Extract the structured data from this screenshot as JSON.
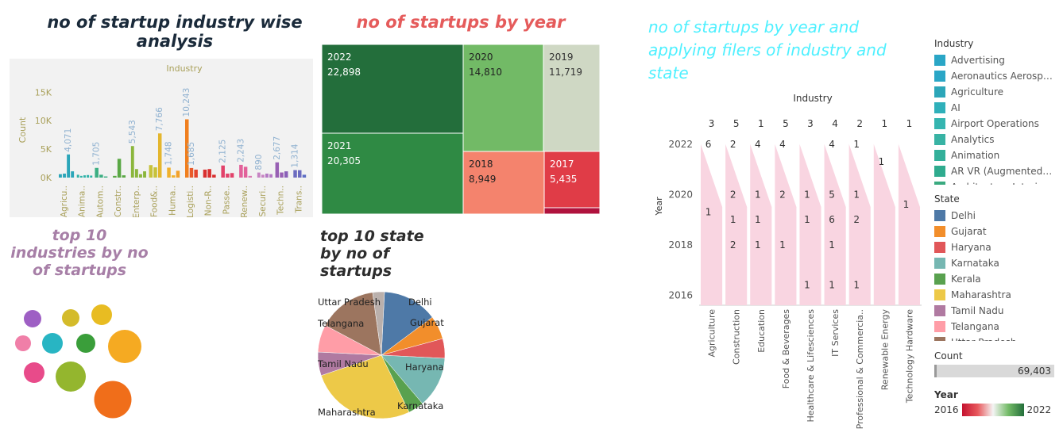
{
  "titles": {
    "industry": "no of startup industry wise analysis",
    "year": "no of startups by year",
    "right": "no of startups by year and applying filers of industry and state",
    "top10_industries": "top 10 industries by no of startups",
    "top10_states": "top 10 state by no of startups"
  },
  "colors": {
    "title_dark": "#1a2a3a",
    "title_red": "#e55b5b",
    "title_cyan": "#4ff0ff",
    "title_purple": "#a77fa7",
    "area_pink": "#f9d5e1"
  },
  "chart_data": [
    {
      "id": "industry-bars",
      "type": "bar",
      "title": "no of startup industry wise analysis",
      "header": "Industry",
      "ylabel": "Count",
      "yticks": [
        "0K",
        "5K",
        "10K",
        "15K"
      ],
      "ylim": [
        0,
        17000
      ],
      "groups": [
        {
          "label": "Agricu..",
          "values": [
            600,
            700,
            4071,
            1100
          ],
          "colors": [
            "#2ca6b9",
            "#2ca6b9",
            "#2ca6b9",
            "#2ca6b9"
          ],
          "data_label": "4,071"
        },
        {
          "label": "Anima..",
          "values": [
            500,
            300,
            400,
            450,
            350
          ],
          "colors": [
            "#2fb2a8",
            "#2fb2a8",
            "#2fb2a8",
            "#2fb2a8",
            "#2fb2a8"
          ]
        },
        {
          "label": "Autom..",
          "values": [
            1705,
            500,
            200
          ],
          "colors": [
            "#3cae82",
            "#3cae82",
            "#3cae82"
          ],
          "data_label": "1,705"
        },
        {
          "label": "Constr..",
          "values": [
            300,
            3300,
            400
          ],
          "colors": [
            "#5aa845",
            "#5aa845",
            "#5aa845"
          ]
        },
        {
          "label": "Enterp..",
          "values": [
            5543,
            1500,
            600,
            1100
          ],
          "colors": [
            "#8bb63c",
            "#8bb63c",
            "#8bb63c",
            "#8bb63c"
          ],
          "data_label": "5,543"
        },
        {
          "label": "Food&..",
          "values": [
            2200,
            1800,
            7766
          ],
          "colors": [
            "#c7c23a",
            "#c7c23a",
            "#e4b62e"
          ],
          "data_label": "7,766"
        },
        {
          "label": "Huma..",
          "values": [
            1748,
            400,
            1200
          ],
          "colors": [
            "#f0b12c",
            "#f0b12c",
            "#f2a12a"
          ],
          "data_label": "1,748"
        },
        {
          "label": "Logisti..",
          "values": [
            10243,
            1685,
            1400
          ],
          "colors": [
            "#f07f1e",
            "#e95a2a",
            "#e4452e"
          ],
          "data_label": "10,243",
          "data_label2": "1,685"
        },
        {
          "label": "Non-R..",
          "values": [
            1400,
            1500,
            500
          ],
          "colors": [
            "#d92f2f",
            "#d92f2f",
            "#d92f2f"
          ]
        },
        {
          "label": "Passe..",
          "values": [
            2125,
            700,
            800
          ],
          "colors": [
            "#e2426a",
            "#e2426a",
            "#e2426a"
          ],
          "data_label": "2,125"
        },
        {
          "label": "Renew..",
          "values": [
            2243,
            1900,
            300
          ],
          "colors": [
            "#e2609a",
            "#e2609a",
            "#d97bb4"
          ],
          "data_label": "2,243"
        },
        {
          "label": "Securi..",
          "values": [
            890,
            500,
            700,
            600
          ],
          "colors": [
            "#c784c3",
            "#c784c3",
            "#b479c4",
            "#b479c4"
          ],
          "data_label": "890"
        },
        {
          "label": "Techn..",
          "values": [
            2677,
            900,
            1100
          ],
          "colors": [
            "#9860b4",
            "#9860b4",
            "#8a60b8"
          ],
          "data_label": "2,677"
        },
        {
          "label": "Trans..",
          "values": [
            1314,
            1300,
            500
          ],
          "colors": [
            "#6c6cc0",
            "#6c6cc0",
            "#5d6ec4"
          ],
          "data_label": "1,314"
        }
      ]
    },
    {
      "id": "year-treemap",
      "type": "treemap",
      "title": "no of startups by year",
      "cells": [
        {
          "year": "2022",
          "value": "22,898",
          "color": "#236e3b"
        },
        {
          "year": "2021",
          "value": "20,305",
          "color": "#2f8a44"
        },
        {
          "year": "2020",
          "value": "14,810",
          "color": "#72ba66"
        },
        {
          "year": "2019",
          "value": "11,719",
          "color": "#cfd8c4"
        },
        {
          "year": "2018",
          "value": "8,949",
          "color": "#f4836d"
        },
        {
          "year": "2017",
          "value": "5,435",
          "color": "#e03c47"
        },
        {
          "year": "",
          "value": "",
          "color": "#b0123d"
        }
      ]
    },
    {
      "id": "year-industry-area",
      "type": "area",
      "title": "no of startups by year and applying filers of industry and state",
      "header": "Industry",
      "ylabel": "Year",
      "yticks": [
        "2016",
        "2018",
        "2020",
        "2022"
      ],
      "ylim": [
        2015.6,
        2023
      ],
      "categories": [
        "Agriculture",
        "Construction",
        "Education",
        "Food & Beverages",
        "Healthcare & Lifesciences",
        "IT Services",
        "Professional & Commercia..",
        "Renewable Energy",
        "Technology Hardware"
      ],
      "top_counts": [
        "3",
        "5",
        "1",
        "5",
        "3",
        "4",
        "2",
        "1",
        "1"
      ],
      "points": [
        {
          "c": 0,
          "year": 2022,
          "label": "6"
        },
        {
          "c": 0,
          "year": 2019.3,
          "label": "1"
        },
        {
          "c": 1,
          "year": 2022,
          "label": "2"
        },
        {
          "c": 1,
          "year": 2020,
          "label": "2"
        },
        {
          "c": 1,
          "year": 2019,
          "label": "1"
        },
        {
          "c": 1,
          "year": 2018,
          "label": "2"
        },
        {
          "c": 2,
          "year": 2022,
          "label": "4"
        },
        {
          "c": 2,
          "year": 2020,
          "label": "1"
        },
        {
          "c": 2,
          "year": 2019,
          "label": "1"
        },
        {
          "c": 2,
          "year": 2018,
          "label": "1"
        },
        {
          "c": 3,
          "year": 2022,
          "label": "4"
        },
        {
          "c": 3,
          "year": 2020,
          "label": "2"
        },
        {
          "c": 3,
          "year": 2018,
          "label": "1"
        },
        {
          "c": 4,
          "year": 2020,
          "label": "1"
        },
        {
          "c": 4,
          "year": 2019,
          "label": "1"
        },
        {
          "c": 4,
          "year": 2016.4,
          "label": "1"
        },
        {
          "c": 5,
          "year": 2022,
          "label": "4"
        },
        {
          "c": 5,
          "year": 2020,
          "label": "5"
        },
        {
          "c": 5,
          "year": 2019,
          "label": "6"
        },
        {
          "c": 5,
          "year": 2018,
          "label": "1"
        },
        {
          "c": 5,
          "year": 2016.4,
          "label": "1"
        },
        {
          "c": 6,
          "year": 2022,
          "label": "1"
        },
        {
          "c": 6,
          "year": 2020,
          "label": "1"
        },
        {
          "c": 6,
          "year": 2019,
          "label": "2"
        },
        {
          "c": 6,
          "year": 2016.4,
          "label": "1"
        },
        {
          "c": 7,
          "year": 2021.3,
          "label": "1"
        },
        {
          "c": 8,
          "year": 2019.6,
          "label": "1"
        }
      ]
    },
    {
      "id": "top10-industries-bubbles",
      "type": "bubble",
      "title": "top 10 industries by no of startups",
      "bubbles": [
        {
          "color": "#9e5fc4",
          "size": 18
        },
        {
          "color": "#d4bb2a",
          "size": 18
        },
        {
          "color": "#e8bc22",
          "size": 22
        },
        {
          "color": "#f07fa8",
          "size": 16
        },
        {
          "color": "#28b5c3",
          "size": 22
        },
        {
          "color": "#3a9e3a",
          "size": 20
        },
        {
          "color": "#f5aa22",
          "size": 30
        },
        {
          "color": "#e84b8a",
          "size": 22
        },
        {
          "color": "#94b62e",
          "size": 26
        },
        {
          "color": "#f06e1a",
          "size": 35
        }
      ]
    },
    {
      "id": "top10-states-pie",
      "type": "pie",
      "title": "top 10 state by no of startups",
      "slices": [
        {
          "label": "Delhi",
          "value": 14,
          "color": "#4e79a7"
        },
        {
          "label": "Gujarat",
          "value": 6,
          "color": "#f28e2b"
        },
        {
          "label": "Haryana",
          "value": 5,
          "color": "#e15759"
        },
        {
          "label": "Karnataka",
          "value": 13,
          "color": "#76b7b2"
        },
        {
          "label": "",
          "value": 4,
          "color": "#59a14f"
        },
        {
          "label": "Maharashtra",
          "value": 27,
          "color": "#edc948"
        },
        {
          "label": "Tamil Nadu",
          "value": 6,
          "color": "#b07aa1"
        },
        {
          "label": "Telangana",
          "value": 7,
          "color": "#ff9da7"
        },
        {
          "label": "Uttar Pradesh",
          "value": 15,
          "color": "#9c755f"
        },
        {
          "label": "",
          "value": 3,
          "color": "#bab0ac"
        }
      ]
    }
  ],
  "legend_industry": {
    "title": "Industry",
    "items": [
      {
        "label": "Advertising",
        "color": "#2aa6c6"
      },
      {
        "label": "Aeronautics Aerospa..",
        "color": "#2aa6c6"
      },
      {
        "label": "Agriculture",
        "color": "#2ca6b9"
      },
      {
        "label": "AI",
        "color": "#2fb0ba"
      },
      {
        "label": "Airport Operations",
        "color": "#35b5b0"
      },
      {
        "label": "Analytics",
        "color": "#38b3a4"
      },
      {
        "label": "Animation",
        "color": "#33b09a"
      },
      {
        "label": "AR VR (Augmented + ..",
        "color": "#2fab8e"
      },
      {
        "label": "Architecture Interior..",
        "color": "#3aaa80"
      }
    ]
  },
  "legend_state": {
    "title": "State",
    "items": [
      {
        "label": "Delhi",
        "color": "#4e79a7"
      },
      {
        "label": "Gujarat",
        "color": "#f28e2b"
      },
      {
        "label": "Haryana",
        "color": "#e15759"
      },
      {
        "label": "Karnataka",
        "color": "#76b7b2"
      },
      {
        "label": "Kerala",
        "color": "#59a14f"
      },
      {
        "label": "Maharashtra",
        "color": "#edc948"
      },
      {
        "label": "Tamil Nadu",
        "color": "#b07aa1"
      },
      {
        "label": "Telangana",
        "color": "#ff9da7"
      },
      {
        "label": "Uttar Pradesh",
        "color": "#9c755f"
      }
    ]
  },
  "count_filter": {
    "title": "Count",
    "value": "69,403"
  },
  "year_filter": {
    "title": "Year",
    "min": "2016",
    "max": "2022"
  }
}
